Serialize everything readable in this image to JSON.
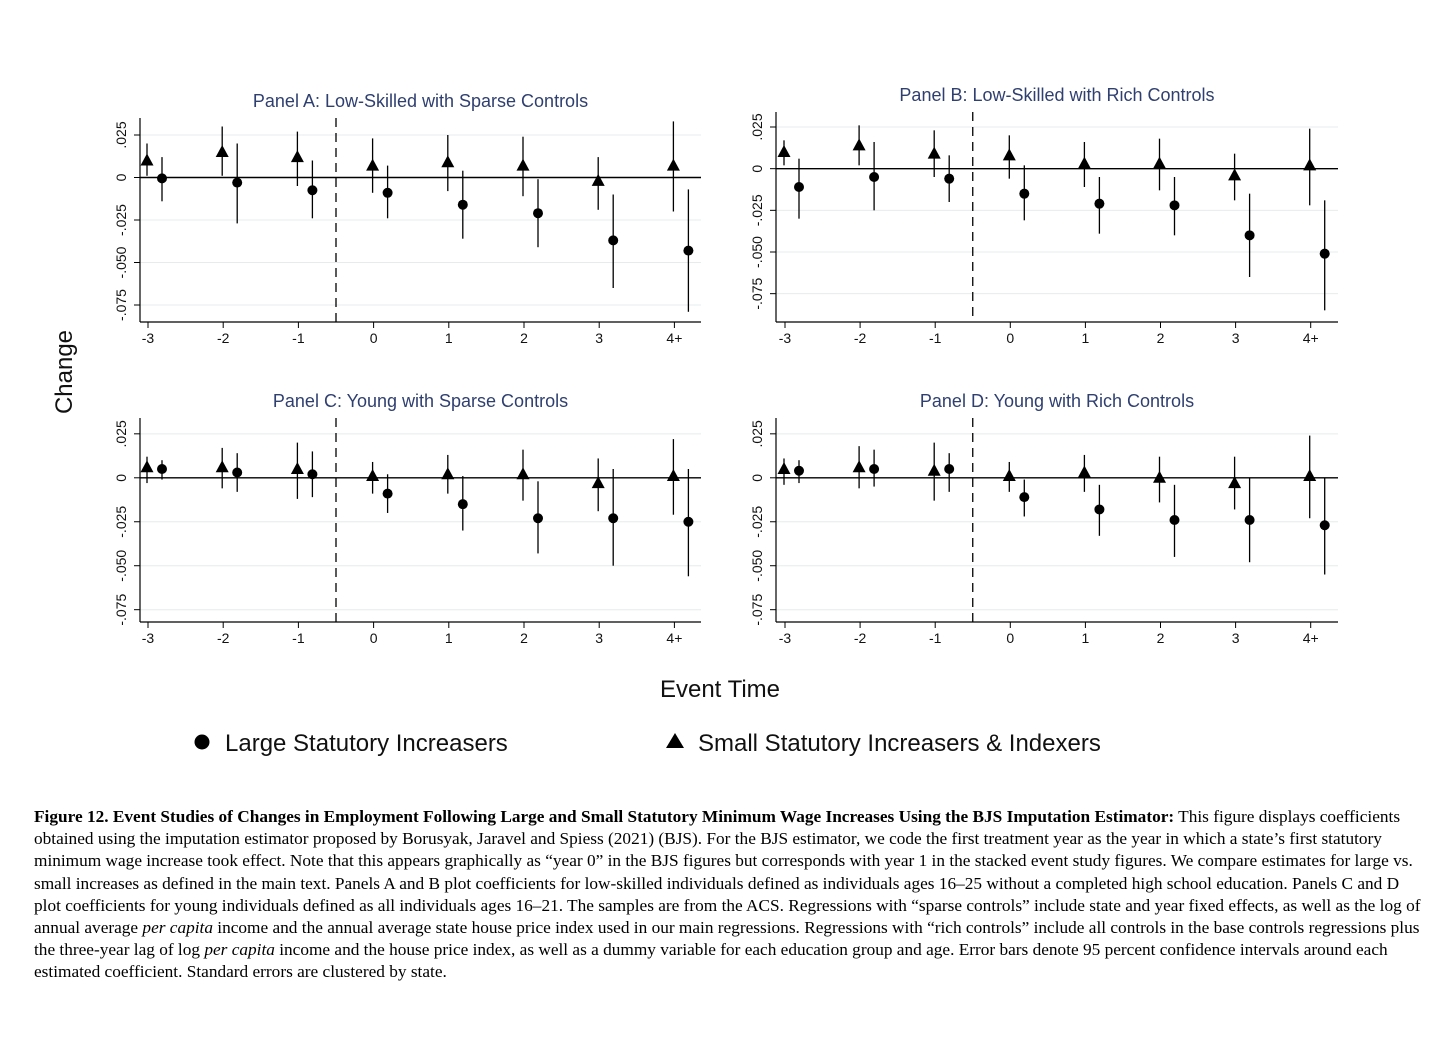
{
  "figure": {
    "y_axis_label": "Change",
    "x_axis_label": "Event Time"
  },
  "legend": {
    "large_label": "Large Statutory Increasers",
    "small_label": "Small Statutory Increasers & Indexers"
  },
  "caption": {
    "title": "Figure 12. Event Studies of Changes in Employment Following Large and Small Statutory Minimum Wage Increases Using the BJS Imputation Estimator:",
    "text_1": " This figure displays coefficients obtained using the imputation estimator proposed by Borusyak, Jaravel and Spiess (2021) (BJS). For the BJS estimator, we code the first treatment year as the year in which a state’s first statutory minimum wage increase took effect. Note that this appears graphically as “year 0” in the BJS figures but corresponds with year 1 in the stacked event study figures. We compare estimates for large vs. small increases as defined in the main text. Panels A and B plot coefficients for low-skilled individuals defined as individuals ages 16–25 without a completed high school education. Panels C and D plot coefficients for young individuals defined as all individuals ages 16–21. The samples are from the ACS. Regressions with “sparse controls” include state and year fixed effects, as well as the log of annual average ",
    "italic_1": "per capita",
    "text_2": " income and the annual average state house price index used in our main regressions. Regressions with “rich controls” include all controls in the base controls regressions plus the three-year lag of log ",
    "italic_2": "per capita",
    "text_3": " income and the house price index, as well as a dummy variable for each education group and age. Error bars denote 95 percent confidence intervals around each estimated coefficient. Standard errors are clustered by state."
  },
  "chart_data": [
    {
      "type": "scatter",
      "title": "Panel A: Low-Skilled with Sparse Controls",
      "x": [
        "-3",
        "-2",
        "-1",
        "0",
        "1",
        "2",
        "3",
        "4+"
      ],
      "y_ticks": [
        ".025",
        "0",
        "-.025",
        "-.050",
        "-.075"
      ],
      "y_tick_values": [
        0.025,
        0,
        -0.025,
        -0.05,
        -0.075
      ],
      "ylim": [
        -0.085,
        0.035
      ],
      "series": [
        {
          "name": "Large Statutory Increasers",
          "marker": "circle",
          "values": [
            -0.0005,
            -0.003,
            -0.0075,
            -0.009,
            -0.016,
            -0.021,
            -0.037,
            -0.043
          ],
          "ci_low": [
            -0.014,
            -0.027,
            -0.024,
            -0.024,
            -0.036,
            -0.041,
            -0.065,
            -0.079
          ],
          "ci_high": [
            0.012,
            0.02,
            0.01,
            0.007,
            0.004,
            -0.001,
            -0.01,
            -0.007
          ]
        },
        {
          "name": "Small Statutory Increasers & Indexers",
          "marker": "triangle",
          "values": [
            0.01,
            0.015,
            0.012,
            0.007,
            0.009,
            0.007,
            -0.002,
            0.007
          ],
          "ci_low": [
            0.001,
            0.001,
            -0.005,
            -0.009,
            -0.008,
            -0.011,
            -0.019,
            -0.02
          ],
          "ci_high": [
            0.02,
            0.03,
            0.027,
            0.023,
            0.025,
            0.024,
            0.012,
            0.033
          ]
        }
      ]
    },
    {
      "type": "scatter",
      "title": "Panel B: Low-Skilled with Rich Controls",
      "x": [
        "-3",
        "-2",
        "-1",
        "0",
        "1",
        "2",
        "3",
        "4+"
      ],
      "y_ticks": [
        ".025",
        "0",
        "-.025",
        "-.050",
        "-.075"
      ],
      "y_tick_values": [
        0.025,
        0,
        -0.025,
        -0.05,
        -0.075
      ],
      "ylim": [
        -0.092,
        0.034
      ],
      "series": [
        {
          "name": "Large Statutory Increasers",
          "marker": "circle",
          "values": [
            -0.011,
            -0.005,
            -0.006,
            -0.015,
            -0.021,
            -0.022,
            -0.04,
            -0.051
          ],
          "ci_low": [
            -0.03,
            -0.025,
            -0.02,
            -0.031,
            -0.039,
            -0.04,
            -0.065,
            -0.085
          ],
          "ci_high": [
            0.006,
            0.016,
            0.008,
            0.002,
            -0.005,
            -0.005,
            -0.015,
            -0.019
          ]
        },
        {
          "name": "Small Statutory Increasers & Indexers",
          "marker": "triangle",
          "values": [
            0.01,
            0.014,
            0.009,
            0.008,
            0.003,
            0.003,
            -0.004,
            0.002
          ],
          "ci_low": [
            0.002,
            0.002,
            -0.005,
            -0.006,
            -0.011,
            -0.013,
            -0.019,
            -0.022
          ],
          "ci_high": [
            0.017,
            0.026,
            0.023,
            0.02,
            0.016,
            0.018,
            0.009,
            0.024
          ]
        }
      ]
    },
    {
      "type": "scatter",
      "title": "Panel C: Young with Sparse Controls",
      "x": [
        "-3",
        "-2",
        "-1",
        "0",
        "1",
        "2",
        "3",
        "4+"
      ],
      "y_ticks": [
        ".025",
        "0",
        "-.025",
        "-.050",
        "-.075"
      ],
      "y_tick_values": [
        0.025,
        0,
        -0.025,
        -0.05,
        -0.075
      ],
      "ylim": [
        -0.082,
        0.034
      ],
      "series": [
        {
          "name": "Large Statutory Increasers",
          "marker": "circle",
          "values": [
            0.005,
            0.003,
            0.002,
            -0.009,
            -0.015,
            -0.023,
            -0.023,
            -0.025
          ],
          "ci_low": [
            -0.001,
            -0.008,
            -0.011,
            -0.02,
            -0.03,
            -0.043,
            -0.05,
            -0.056
          ],
          "ci_high": [
            0.01,
            0.014,
            0.015,
            0.002,
            0.001,
            -0.002,
            0.005,
            0.005
          ]
        },
        {
          "name": "Small Statutory Increasers & Indexers",
          "marker": "triangle",
          "values": [
            0.006,
            0.006,
            0.005,
            0.001,
            0.002,
            0.002,
            -0.003,
            0.001
          ],
          "ci_low": [
            -0.003,
            -0.006,
            -0.012,
            -0.009,
            -0.009,
            -0.013,
            -0.019,
            -0.021
          ],
          "ci_high": [
            0.012,
            0.017,
            0.02,
            0.009,
            0.013,
            0.016,
            0.011,
            0.022
          ]
        }
      ]
    },
    {
      "type": "scatter",
      "title": "Panel D: Young with Rich Controls",
      "x": [
        "-3",
        "-2",
        "-1",
        "0",
        "1",
        "2",
        "3",
        "4+"
      ],
      "y_ticks": [
        ".025",
        "0",
        "-.025",
        "-.050",
        "-.075"
      ],
      "y_tick_values": [
        0.025,
        0,
        -0.025,
        -0.05,
        -0.075
      ],
      "ylim": [
        -0.082,
        0.034
      ],
      "series": [
        {
          "name": "Large Statutory Increasers",
          "marker": "circle",
          "values": [
            0.004,
            0.005,
            0.005,
            -0.011,
            -0.018,
            -0.024,
            -0.024,
            -0.027
          ],
          "ci_low": [
            -0.003,
            -0.005,
            -0.008,
            -0.022,
            -0.033,
            -0.045,
            -0.048,
            -0.055
          ],
          "ci_high": [
            0.01,
            0.016,
            0.014,
            -0.001,
            -0.004,
            -0.004,
            0.0,
            0.0
          ]
        },
        {
          "name": "Small Statutory Increasers & Indexers",
          "marker": "triangle",
          "values": [
            0.005,
            0.006,
            0.004,
            0.001,
            0.003,
            0.0,
            -0.003,
            0.001
          ],
          "ci_low": [
            -0.004,
            -0.006,
            -0.013,
            -0.008,
            -0.008,
            -0.014,
            -0.018,
            -0.023
          ],
          "ci_high": [
            0.011,
            0.018,
            0.02,
            0.009,
            0.013,
            0.012,
            0.012,
            0.024
          ]
        }
      ]
    }
  ]
}
